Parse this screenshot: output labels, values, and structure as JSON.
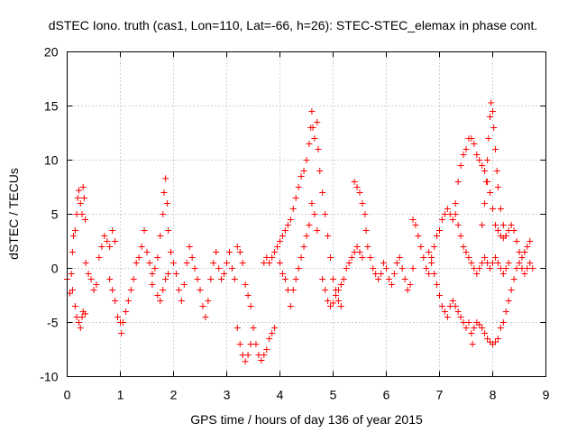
{
  "chart_data": {
    "type": "scatter",
    "title": "dSTEC Iono. truth (cas1, Lon=110, Lat=-66, h=26): STEC-STEC_elemax in phase cont.",
    "xlabel": "GPS time / hours of day 136 of year 2015",
    "ylabel": "dSTEC  / TECUs",
    "xlim": [
      0,
      9
    ],
    "ylim": [
      -10,
      20
    ],
    "xticks": [
      0,
      1,
      2,
      3,
      4,
      5,
      6,
      7,
      8,
      9
    ],
    "yticks": [
      -10,
      -5,
      0,
      5,
      10,
      15,
      20
    ],
    "grid": true,
    "marker": "+",
    "series": [
      {
        "color": "#ff0000",
        "points": [
          [
            0.0,
            -1.0
          ],
          [
            0.05,
            -2.3
          ],
          [
            0.08,
            -0.5
          ],
          [
            0.1,
            1.5
          ],
          [
            0.12,
            3.0
          ],
          [
            0.15,
            3.5
          ],
          [
            0.18,
            5.0
          ],
          [
            0.2,
            6.5
          ],
          [
            0.22,
            7.2
          ],
          [
            0.25,
            6.0
          ],
          [
            0.28,
            5.0
          ],
          [
            0.3,
            7.5
          ],
          [
            0.32,
            6.5
          ],
          [
            0.34,
            4.5
          ],
          [
            0.1,
            -2.0
          ],
          [
            0.15,
            -3.5
          ],
          [
            0.18,
            -4.5
          ],
          [
            0.22,
            -5.0
          ],
          [
            0.25,
            -5.5
          ],
          [
            0.28,
            -4.5
          ],
          [
            0.3,
            -4.0
          ],
          [
            0.34,
            -4.2
          ],
          [
            0.35,
            0.5
          ],
          [
            0.4,
            -0.5
          ],
          [
            0.45,
            -1.0
          ],
          [
            0.5,
            -2.0
          ],
          [
            0.55,
            -1.5
          ],
          [
            0.6,
            1.0
          ],
          [
            0.65,
            2.0
          ],
          [
            0.7,
            3.0
          ],
          [
            0.75,
            2.5
          ],
          [
            0.8,
            2.0
          ],
          [
            0.85,
            3.5
          ],
          [
            0.9,
            2.5
          ],
          [
            0.8,
            -1.0
          ],
          [
            0.85,
            -2.0
          ],
          [
            0.9,
            -3.0
          ],
          [
            0.95,
            -4.5
          ],
          [
            1.0,
            -5.0
          ],
          [
            1.02,
            -6.0
          ],
          [
            1.05,
            -5.0
          ],
          [
            1.1,
            -4.0
          ],
          [
            1.15,
            -3.0
          ],
          [
            1.2,
            -2.0
          ],
          [
            1.25,
            -1.0
          ],
          [
            1.3,
            0.5
          ],
          [
            1.35,
            1.0
          ],
          [
            1.4,
            2.0
          ],
          [
            1.45,
            3.5
          ],
          [
            1.5,
            1.5
          ],
          [
            1.55,
            0.5
          ],
          [
            1.6,
            -0.5
          ],
          [
            1.65,
            0.0
          ],
          [
            1.7,
            1.0
          ],
          [
            1.75,
            3.0
          ],
          [
            1.8,
            5.0
          ],
          [
            1.82,
            7.0
          ],
          [
            1.85,
            8.3
          ],
          [
            1.88,
            6.0
          ],
          [
            1.9,
            3.5
          ],
          [
            1.95,
            1.5
          ],
          [
            1.6,
            -1.5
          ],
          [
            1.7,
            -2.5
          ],
          [
            1.75,
            -3.0
          ],
          [
            1.8,
            -2.0
          ],
          [
            1.85,
            -1.0
          ],
          [
            1.9,
            -0.5
          ],
          [
            2.0,
            0.5
          ],
          [
            2.05,
            -0.5
          ],
          [
            2.1,
            -2.0
          ],
          [
            2.15,
            -3.0
          ],
          [
            2.2,
            -1.5
          ],
          [
            2.25,
            0.5
          ],
          [
            2.3,
            2.0
          ],
          [
            2.35,
            1.0
          ],
          [
            2.4,
            0.0
          ],
          [
            2.45,
            -1.0
          ],
          [
            2.5,
            -2.0
          ],
          [
            2.55,
            -3.5
          ],
          [
            2.6,
            -4.5
          ],
          [
            2.65,
            -3.0
          ],
          [
            2.7,
            -1.0
          ],
          [
            2.75,
            0.5
          ],
          [
            2.8,
            1.5
          ],
          [
            2.85,
            0.0
          ],
          [
            2.9,
            -1.0
          ],
          [
            2.95,
            -0.5
          ],
          [
            3.0,
            0.5
          ],
          [
            3.05,
            1.5
          ],
          [
            3.1,
            0.0
          ],
          [
            3.15,
            -1.0
          ],
          [
            3.2,
            2.0
          ],
          [
            3.25,
            1.5
          ],
          [
            3.3,
            0.5
          ],
          [
            3.35,
            -1.5
          ],
          [
            3.4,
            -2.5
          ],
          [
            3.45,
            -3.5
          ],
          [
            3.5,
            -5.5
          ],
          [
            3.55,
            -7.0
          ],
          [
            3.6,
            -8.0
          ],
          [
            3.65,
            -8.5
          ],
          [
            3.7,
            -8.0
          ],
          [
            3.75,
            -7.5
          ],
          [
            3.8,
            -6.5
          ],
          [
            3.85,
            -6.0
          ],
          [
            3.9,
            -5.5
          ],
          [
            3.2,
            -5.5
          ],
          [
            3.25,
            -7.0
          ],
          [
            3.3,
            -8.0
          ],
          [
            3.35,
            -8.6
          ],
          [
            3.4,
            -8.0
          ],
          [
            3.45,
            -7.0
          ],
          [
            3.7,
            0.5
          ],
          [
            3.75,
            1.0
          ],
          [
            3.8,
            0.5
          ],
          [
            3.85,
            1.0
          ],
          [
            3.9,
            1.5
          ],
          [
            3.95,
            2.0
          ],
          [
            4.0,
            2.5
          ],
          [
            4.05,
            3.0
          ],
          [
            4.1,
            3.5
          ],
          [
            4.15,
            4.0
          ],
          [
            4.2,
            4.5
          ],
          [
            4.25,
            5.5
          ],
          [
            4.3,
            6.5
          ],
          [
            4.35,
            7.5
          ],
          [
            4.4,
            8.5
          ],
          [
            4.45,
            9.0
          ],
          [
            4.5,
            10.0
          ],
          [
            4.55,
            11.5
          ],
          [
            4.58,
            13.0
          ],
          [
            4.6,
            14.5
          ],
          [
            4.62,
            13.0
          ],
          [
            4.65,
            12.0
          ],
          [
            4.7,
            13.5
          ],
          [
            4.72,
            11.0
          ],
          [
            4.75,
            9.0
          ],
          [
            4.8,
            7.0
          ],
          [
            4.85,
            5.0
          ],
          [
            4.9,
            3.0
          ],
          [
            4.95,
            1.0
          ],
          [
            5.0,
            -1.0
          ],
          [
            5.05,
            -2.0
          ],
          [
            5.1,
            -3.0
          ],
          [
            5.15,
            -3.5
          ],
          [
            4.0,
            0.5
          ],
          [
            4.05,
            -0.5
          ],
          [
            4.1,
            -1.0
          ],
          [
            4.15,
            -2.0
          ],
          [
            4.2,
            -3.5
          ],
          [
            4.25,
            -2.0
          ],
          [
            4.3,
            -1.0
          ],
          [
            4.35,
            0.0
          ],
          [
            4.4,
            1.0
          ],
          [
            4.45,
            2.0
          ],
          [
            4.5,
            3.0
          ],
          [
            4.55,
            4.0
          ],
          [
            4.6,
            6.0
          ],
          [
            4.65,
            5.0
          ],
          [
            4.7,
            3.5
          ],
          [
            4.8,
            -1.0
          ],
          [
            4.85,
            -2.0
          ],
          [
            4.9,
            -3.0
          ],
          [
            4.95,
            -3.5
          ],
          [
            5.0,
            -3.2
          ],
          [
            5.05,
            -2.5
          ],
          [
            5.1,
            -2.0
          ],
          [
            5.15,
            -1.5
          ],
          [
            5.2,
            -1.0
          ],
          [
            5.25,
            0.0
          ],
          [
            5.3,
            0.5
          ],
          [
            5.35,
            1.0
          ],
          [
            5.4,
            1.5
          ],
          [
            5.45,
            2.0
          ],
          [
            5.5,
            1.5
          ],
          [
            5.55,
            1.0
          ],
          [
            5.4,
            8.0
          ],
          [
            5.45,
            7.5
          ],
          [
            5.5,
            7.0
          ],
          [
            5.55,
            6.0
          ],
          [
            5.6,
            5.0
          ],
          [
            5.62,
            3.5
          ],
          [
            5.65,
            2.0
          ],
          [
            5.7,
            1.0
          ],
          [
            5.75,
            0.0
          ],
          [
            5.8,
            -0.5
          ],
          [
            5.85,
            -1.0
          ],
          [
            5.9,
            -0.5
          ],
          [
            5.95,
            0.5
          ],
          [
            6.0,
            0.0
          ],
          [
            6.05,
            -1.0
          ],
          [
            6.1,
            -1.5
          ],
          [
            6.15,
            -0.5
          ],
          [
            6.2,
            0.5
          ],
          [
            6.25,
            1.0
          ],
          [
            6.3,
            0.0
          ],
          [
            6.35,
            -1.0
          ],
          [
            6.4,
            -2.0
          ],
          [
            6.45,
            -1.5
          ],
          [
            6.5,
            0.0
          ],
          [
            6.5,
            4.5
          ],
          [
            6.55,
            4.0
          ],
          [
            6.6,
            3.0
          ],
          [
            6.65,
            2.0
          ],
          [
            6.7,
            1.0
          ],
          [
            6.75,
            0.0
          ],
          [
            6.8,
            -0.5
          ],
          [
            6.85,
            1.0
          ],
          [
            6.9,
            2.0
          ],
          [
            6.95,
            3.0
          ],
          [
            7.0,
            3.5
          ],
          [
            7.05,
            4.5
          ],
          [
            7.1,
            5.0
          ],
          [
            7.15,
            5.5
          ],
          [
            7.2,
            5.0
          ],
          [
            7.25,
            4.5
          ],
          [
            7.3,
            6.0
          ],
          [
            7.35,
            8.0
          ],
          [
            7.4,
            9.5
          ],
          [
            7.45,
            10.5
          ],
          [
            7.5,
            11.0
          ],
          [
            7.55,
            12.0
          ],
          [
            7.6,
            12.0
          ],
          [
            7.65,
            11.5
          ],
          [
            7.7,
            10.5
          ],
          [
            7.75,
            10.0
          ],
          [
            7.8,
            9.5
          ],
          [
            7.85,
            9.0
          ],
          [
            7.9,
            8.0
          ],
          [
            7.95,
            7.0
          ],
          [
            8.0,
            5.5
          ],
          [
            8.05,
            4.0
          ],
          [
            8.1,
            3.5
          ],
          [
            8.15,
            3.0
          ],
          [
            8.2,
            2.8
          ],
          [
            8.25,
            3.0
          ],
          [
            8.3,
            3.5
          ],
          [
            8.35,
            4.0
          ],
          [
            8.4,
            3.5
          ],
          [
            8.45,
            2.5
          ],
          [
            8.5,
            1.5
          ],
          [
            8.55,
            1.0
          ],
          [
            8.6,
            1.5
          ],
          [
            8.65,
            2.0
          ],
          [
            8.7,
            2.5
          ],
          [
            6.8,
            1.5
          ],
          [
            6.85,
            0.5
          ],
          [
            6.9,
            -0.5
          ],
          [
            6.95,
            -1.5
          ],
          [
            7.0,
            -2.5
          ],
          [
            7.05,
            -3.5
          ],
          [
            7.1,
            -4.0
          ],
          [
            7.15,
            -4.5
          ],
          [
            7.2,
            -3.5
          ],
          [
            7.25,
            -3.0
          ],
          [
            7.3,
            -3.5
          ],
          [
            7.35,
            -4.0
          ],
          [
            7.4,
            -4.5
          ],
          [
            7.45,
            -5.0
          ],
          [
            7.5,
            -5.5
          ],
          [
            7.55,
            -5.0
          ],
          [
            7.6,
            -6.0
          ],
          [
            7.62,
            -7.0
          ],
          [
            7.65,
            -5.5
          ],
          [
            7.7,
            -5.0
          ],
          [
            7.75,
            -5.2
          ],
          [
            7.8,
            -5.5
          ],
          [
            7.85,
            -6.0
          ],
          [
            7.9,
            -6.5
          ],
          [
            7.95,
            -6.8
          ],
          [
            8.0,
            -7.0
          ],
          [
            8.05,
            -6.8
          ],
          [
            8.1,
            -6.5
          ],
          [
            8.15,
            -5.5
          ],
          [
            8.2,
            -5.0
          ],
          [
            8.25,
            -4.0
          ],
          [
            8.3,
            -3.0
          ],
          [
            8.35,
            -2.0
          ],
          [
            8.4,
            -1.0
          ],
          [
            8.45,
            0.0
          ],
          [
            8.5,
            0.5
          ],
          [
            8.55,
            0.0
          ],
          [
            8.6,
            -0.5
          ],
          [
            8.65,
            0.0
          ],
          [
            8.7,
            0.5
          ],
          [
            8.75,
            0.0
          ],
          [
            7.3,
            5.0
          ],
          [
            7.35,
            4.0
          ],
          [
            7.4,
            3.0
          ],
          [
            7.45,
            2.0
          ],
          [
            7.5,
            1.5
          ],
          [
            7.55,
            1.0
          ],
          [
            7.6,
            0.5
          ],
          [
            7.65,
            0.0
          ],
          [
            7.7,
            -0.5
          ],
          [
            7.75,
            0.0
          ],
          [
            7.8,
            0.5
          ],
          [
            7.85,
            1.0
          ],
          [
            7.9,
            0.5
          ],
          [
            7.95,
            0.0
          ],
          [
            8.0,
            0.5
          ],
          [
            8.05,
            1.0
          ],
          [
            8.1,
            0.5
          ],
          [
            8.15,
            0.0
          ],
          [
            8.2,
            -0.5
          ],
          [
            8.25,
            0.0
          ],
          [
            8.3,
            0.5
          ],
          [
            7.8,
            4.0
          ],
          [
            7.85,
            6.0
          ],
          [
            7.88,
            8.0
          ],
          [
            7.9,
            10.0
          ],
          [
            7.92,
            12.0
          ],
          [
            7.95,
            14.0
          ],
          [
            7.97,
            15.3
          ],
          [
            8.0,
            14.5
          ],
          [
            8.02,
            13.0
          ],
          [
            8.05,
            11.0
          ],
          [
            8.08,
            9.0
          ],
          [
            8.1,
            7.5
          ],
          [
            8.15,
            5.5
          ],
          [
            8.2,
            4.0
          ],
          [
            8.25,
            3.0
          ]
        ]
      }
    ]
  }
}
